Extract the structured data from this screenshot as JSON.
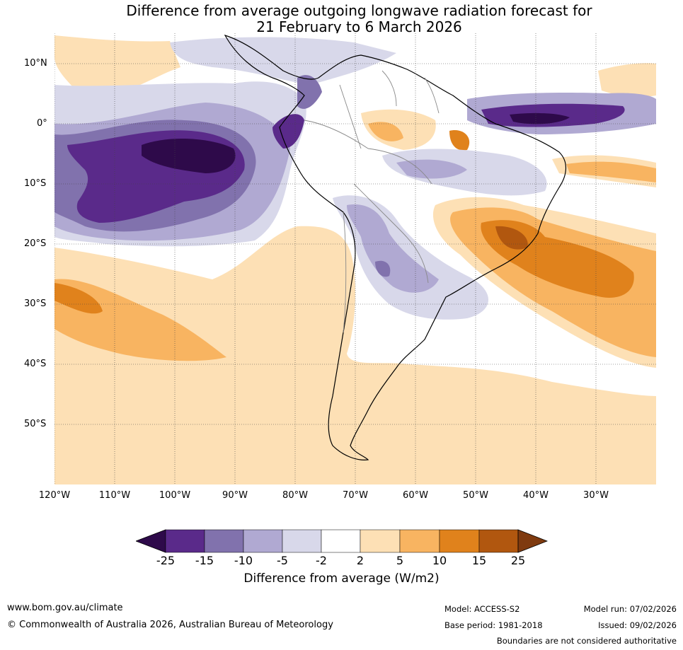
{
  "title": {
    "line1": "Difference from average outgoing longwave radiation forecast for",
    "line2": "21 February to 6 March 2026"
  },
  "map": {
    "latitude_labels": [
      "10°N",
      "0°",
      "10°S",
      "20°S",
      "30°S",
      "40°S",
      "50°S"
    ],
    "longitude_labels": [
      "120°W",
      "110°W",
      "100°W",
      "90°W",
      "80°W",
      "70°W",
      "60°W",
      "50°W",
      "40°W",
      "30°W"
    ]
  },
  "colorbar": {
    "ticks": [
      "-25",
      "-15",
      "-10",
      "-5",
      "-2",
      "2",
      "5",
      "10",
      "15",
      "25"
    ],
    "colors": [
      "#2e0a4a",
      "#5a2a8a",
      "#8172ad",
      "#b0a9d2",
      "#d8d8ea",
      "#ffffff",
      "#fde0b5",
      "#f8b461",
      "#e0821c",
      "#b1570f",
      "#7f3a0f"
    ],
    "label": "Difference from average (W/m2)"
  },
  "footer": {
    "website": "www.bom.gov.au/climate",
    "copyright": "© Commonwealth of Australia 2026, Australian Bureau of Meteorology",
    "model": "Model: ACCESS-S2",
    "base_period": "Base period: 1981-2018",
    "model_run": "Model run: 07/02/2026",
    "issued": "Issued: 09/02/2026",
    "disclaimer": "Boundaries are not considered authoritative"
  }
}
